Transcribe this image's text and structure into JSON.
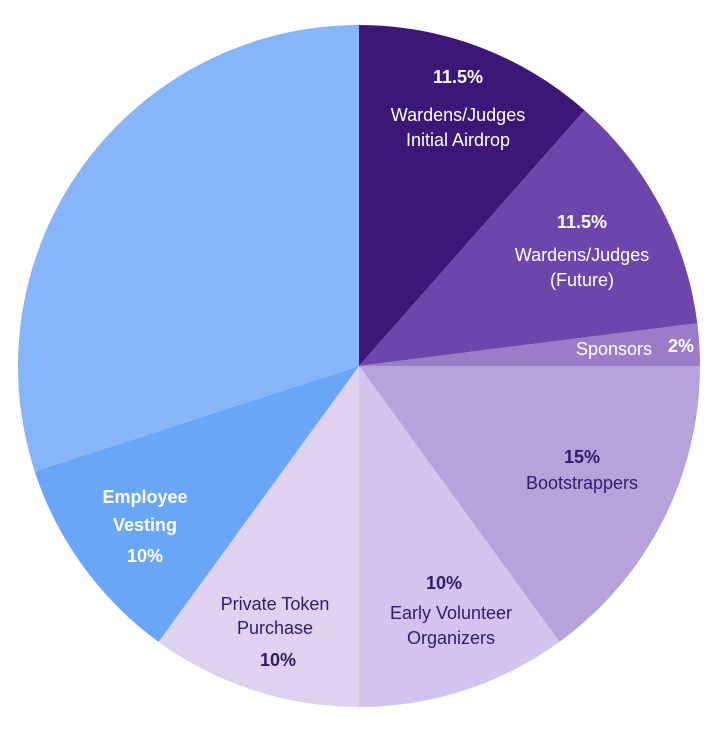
{
  "chart_data": {
    "type": "pie",
    "title": "",
    "start": "top",
    "direction": "clockwise",
    "slices": [
      {
        "key": "warden_airdrop",
        "label_lines": [
          "Wardens/Judges",
          "Initial Airdrop"
        ],
        "value": 11.5,
        "value_label": "11.5%",
        "color": "#3b1878"
      },
      {
        "key": "warden_future",
        "label_lines": [
          "Wardens/Judges",
          "(Future)"
        ],
        "value": 11.5,
        "value_label": "11.5%",
        "color": "#6c46ab"
      },
      {
        "key": "sponsors",
        "label_lines": [
          "Sponsors"
        ],
        "value": 2,
        "value_label": "2%",
        "color": "#9a7cc9"
      },
      {
        "key": "bootstrappers",
        "label_lines": [
          "Bootstrappers"
        ],
        "value": 15,
        "value_label": "15%",
        "color": "#b6a3dc"
      },
      {
        "key": "early_volunteer",
        "label_lines": [
          "Early Volunteer",
          "Organizers"
        ],
        "value": 10,
        "value_label": "10%",
        "color": "#d2c3ef"
      },
      {
        "key": "private_token",
        "label_lines": [
          "Private Token",
          "Purchase"
        ],
        "value": 10,
        "value_label": "10%",
        "color": "#dfd2ef"
      },
      {
        "key": "employee_vesting",
        "label_lines": [
          "Employee",
          "Vesting"
        ],
        "value": 10,
        "value_label": "10%",
        "color": "#69a6f8"
      },
      {
        "key": "unlabeled",
        "label_lines": [],
        "value": 30,
        "value_label": "",
        "color": "#86b5f9"
      }
    ]
  }
}
